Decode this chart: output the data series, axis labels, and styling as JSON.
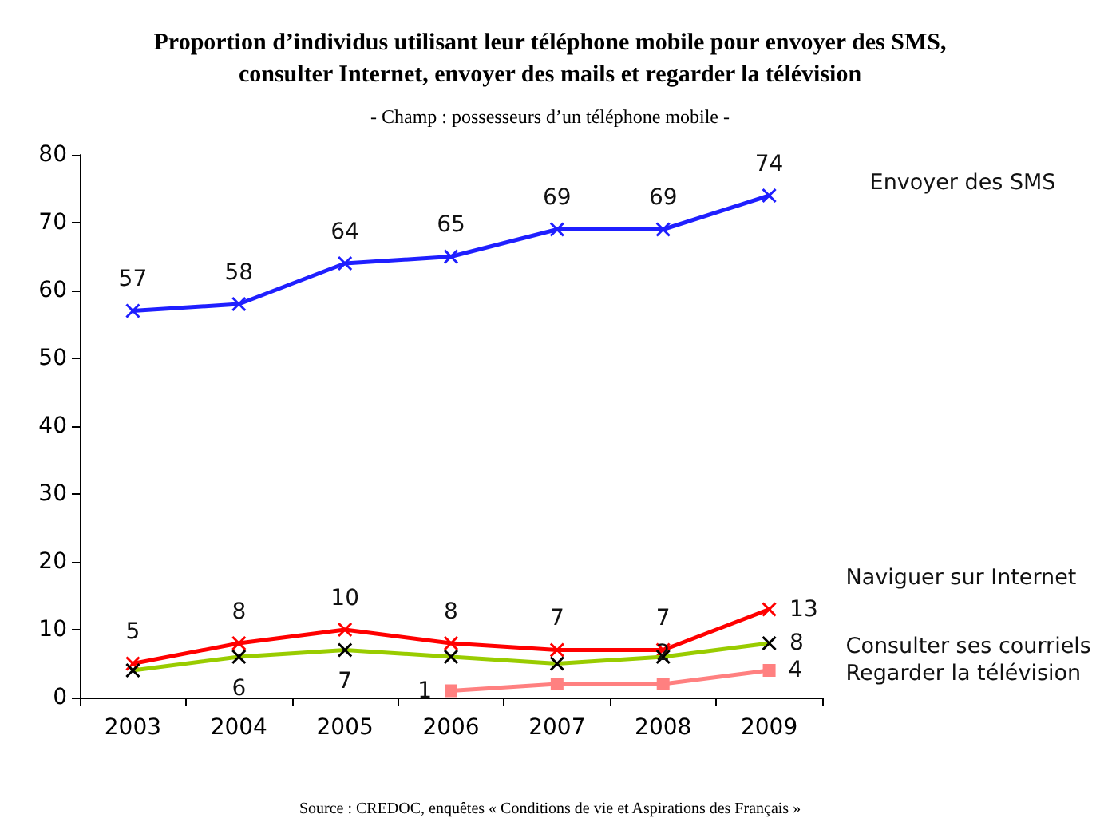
{
  "chart_data": {
    "type": "line",
    "title": "Proportion d’individus utilisant leur téléphone mobile pour envoyer des SMS,\nconsulter Internet, envoyer des mails et regarder la télévision",
    "subtitle": "- Champ : possesseurs d’un téléphone mobile -",
    "annotations": [
      "Source : CREDOC, enquêtes « Conditions de vie et Aspirations des Français »"
    ],
    "categories": [
      "2003",
      "2004",
      "2005",
      "2006",
      "2007",
      "2008",
      "2009"
    ],
    "ylim": [
      0,
      80
    ],
    "yticks": [
      0,
      10,
      20,
      30,
      40,
      50,
      60,
      70,
      80
    ],
    "grid": false,
    "legend": false,
    "marker": "cross",
    "series": [
      {
        "name": "Envoyer des SMS",
        "color": "#1f1fff",
        "values": [
          57,
          58,
          64,
          65,
          69,
          69,
          74
        ],
        "value_labels": [
          "57",
          "58",
          "64",
          "65",
          "69",
          "69",
          "74"
        ]
      },
      {
        "name": "Naviguer sur Internet",
        "color": "#ff0000",
        "values": [
          5,
          8,
          10,
          8,
          7,
          7,
          13
        ],
        "value_labels": [
          "5",
          "8",
          "10",
          "8",
          "7",
          "7",
          "13"
        ]
      },
      {
        "name": "Consulter ses courriels",
        "color": "#99cc00",
        "values": [
          4,
          6,
          7,
          6,
          5,
          6,
          8
        ],
        "value_labels": [
          null,
          "6",
          "7",
          null,
          null,
          null,
          "8"
        ]
      },
      {
        "name": "Regarder la télévision",
        "color": "#ff8080",
        "marker": "square",
        "values": [
          null,
          null,
          null,
          1,
          2,
          2,
          4
        ],
        "value_labels": [
          null,
          null,
          null,
          "1",
          null,
          "2",
          "4"
        ]
      }
    ]
  }
}
